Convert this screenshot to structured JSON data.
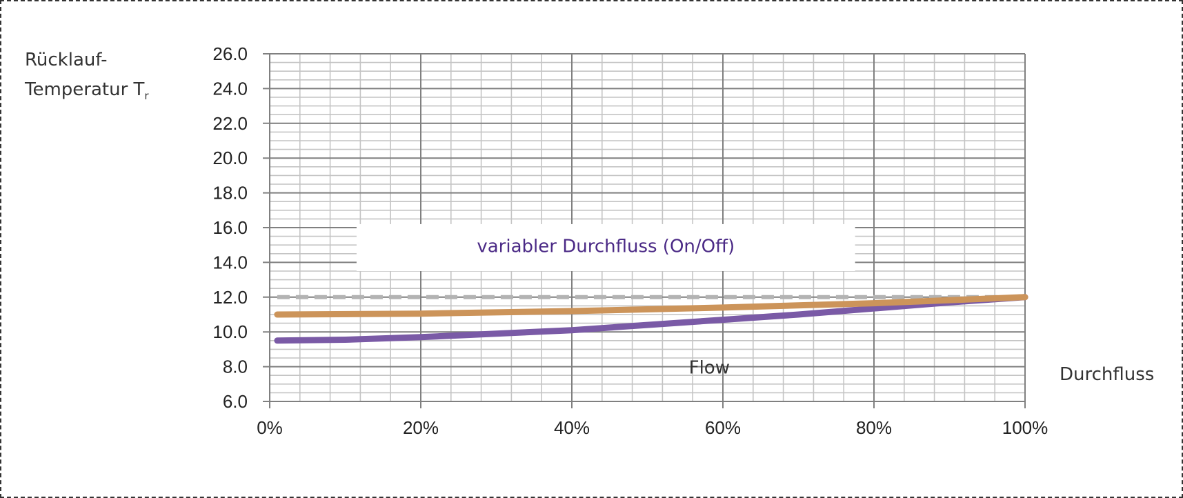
{
  "labels": {
    "y_line1": "Rücklauf-",
    "y_line2": "Temperatur T",
    "y_subscript": "r",
    "x_outer": "Durchfluss"
  },
  "chart_data": {
    "type": "line",
    "xlim": [
      0,
      100
    ],
    "ylim": [
      6,
      26
    ],
    "x_ticks": [
      0,
      20,
      40,
      60,
      80,
      100
    ],
    "x_tick_labels": [
      "0%",
      "20%",
      "40%",
      "60%",
      "80%",
      "100%"
    ],
    "y_ticks": [
      6,
      8,
      10,
      12,
      14,
      16,
      18,
      20,
      22,
      24,
      26
    ],
    "y_tick_labels": [
      "6.0",
      "8.0",
      "10.0",
      "12.0",
      "14.0",
      "16.0",
      "18.0",
      "20.0",
      "22.0",
      "24.0",
      "26.0"
    ],
    "grid": true,
    "inner_xlabel": "Flow",
    "annotation": "variabler Durchfluss (On/Off)",
    "series": [
      {
        "color": "#7a5aa6",
        "style": "solid",
        "x": [
          1,
          10,
          20,
          30,
          40,
          50,
          60,
          70,
          80,
          90,
          100
        ],
        "y": [
          9.5,
          9.55,
          9.7,
          9.9,
          10.1,
          10.4,
          10.7,
          11.0,
          11.35,
          11.7,
          12.0
        ]
      },
      {
        "color": "#cc945a",
        "style": "solid",
        "x": [
          1,
          20,
          40,
          60,
          80,
          100
        ],
        "y": [
          11.0,
          11.05,
          11.2,
          11.4,
          11.65,
          12.0
        ]
      },
      {
        "color": "#b3b3b3",
        "style": "dashed",
        "x": [
          1,
          100
        ],
        "y": [
          12.0,
          12.0
        ]
      }
    ],
    "colors": {
      "annotation_text": "#4b2a86",
      "grid_major": "#808080",
      "grid_minor": "#c4c4c4",
      "axis_text": "#222222"
    }
  }
}
